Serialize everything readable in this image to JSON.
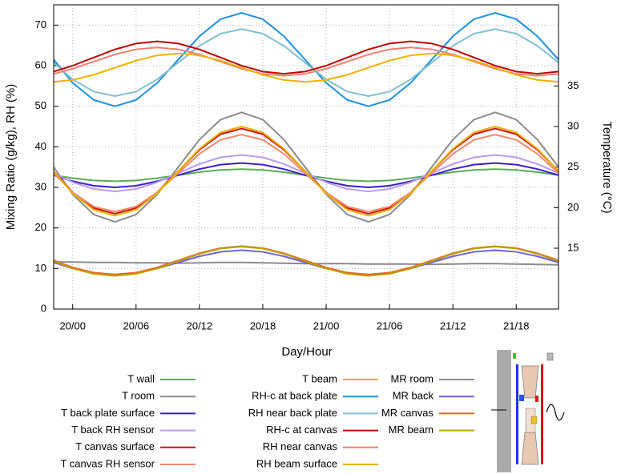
{
  "chart_data": {
    "type": "line",
    "x_label": "Day/Hour",
    "y_label": "Mixing Ratio (g/kg), RH (%)",
    "y2_label": "Temperature (°C)",
    "grid": true,
    "xlim": [
      -1.8,
      46
    ],
    "ylim": [
      0,
      75
    ],
    "y2lim": [
      7.5,
      45
    ],
    "xticks": [
      {
        "value": 0,
        "label": "20/00"
      },
      {
        "value": 6,
        "label": "20/06"
      },
      {
        "value": 12,
        "label": "20/12"
      },
      {
        "value": 18,
        "label": "20/18"
      },
      {
        "value": 24,
        "label": "21/00"
      },
      {
        "value": 30,
        "label": "21/06"
      },
      {
        "value": 36,
        "label": "21/12"
      },
      {
        "value": 42,
        "label": "21/18"
      }
    ],
    "yticks": [
      0,
      10,
      20,
      30,
      40,
      50,
      60,
      70
    ],
    "y2ticks": [
      15,
      20,
      25,
      30,
      35
    ],
    "x": [
      -1.8,
      0,
      2,
      4,
      6,
      8,
      10,
      12,
      14,
      16,
      18,
      20,
      22,
      24,
      26,
      28,
      30,
      32,
      34,
      36,
      38,
      40,
      42,
      44,
      46
    ],
    "series": [
      {
        "name": "T wall",
        "color": "#5aac5a",
        "axis": "y2",
        "values": [
          24,
          23.63,
          23.35,
          23.25,
          23.35,
          23.63,
          24,
          24.38,
          24.65,
          24.75,
          24.65,
          24.38,
          24,
          23.63,
          23.35,
          23.25,
          23.35,
          23.63,
          24,
          24.38,
          24.65,
          24.75,
          24.65,
          24.38,
          24
        ]
      },
      {
        "name": "T room",
        "color": "#8c8c8c",
        "axis": "y2",
        "values": [
          25,
          21.63,
          19.15,
          18.25,
          19.15,
          21.63,
          25,
          28.38,
          30.85,
          31.75,
          30.85,
          28.38,
          25,
          21.63,
          19.15,
          18.25,
          19.15,
          21.63,
          25,
          28.38,
          30.85,
          31.75,
          30.85,
          28.38,
          25
        ]
      },
      {
        "name": "T back plate surface",
        "color": "#3a1fd0",
        "axis": "y2",
        "values": [
          24,
          23.25,
          22.7,
          22.5,
          22.7,
          23.25,
          24,
          24.75,
          25.3,
          25.5,
          25.3,
          24.75,
          24,
          23.25,
          22.7,
          22.5,
          22.7,
          23.25,
          24,
          24.75,
          25.3,
          25.5,
          25.3,
          24.75,
          24
        ]
      },
      {
        "name": "T back RH sensor",
        "color": "#b89cf0",
        "axis": "y2",
        "values": [
          24.25,
          23.13,
          22.3,
          22,
          22.3,
          23.13,
          24.25,
          25.38,
          26.2,
          26.5,
          26.2,
          25.38,
          24.25,
          23.13,
          22.3,
          22,
          22.3,
          23.13,
          24.25,
          25.38,
          26.2,
          26.5,
          26.2,
          25.38,
          24.25
        ]
      },
      {
        "name": "T canvas surface",
        "color": "#d01010",
        "axis": "y2",
        "values": [
          24.5,
          21.88,
          19.95,
          19.25,
          19.95,
          21.88,
          24.5,
          27.13,
          29.05,
          29.75,
          29.05,
          27.13,
          24.5,
          21.88,
          19.95,
          19.25,
          19.95,
          21.88,
          24.5,
          27.13,
          29.05,
          29.75,
          29.05,
          27.13,
          24.5
        ]
      },
      {
        "name": "T canvas RH sensor",
        "color": "#f08a70",
        "axis": "y2",
        "values": [
          24.25,
          21.88,
          20.14,
          19.5,
          20.14,
          21.88,
          24.25,
          26.63,
          28.36,
          29,
          28.36,
          26.63,
          24.25,
          21.88,
          20.14,
          19.5,
          20.14,
          21.88,
          24.25,
          26.63,
          28.36,
          29,
          28.36,
          26.63,
          24.25
        ]
      },
      {
        "name": "T beam",
        "color": "#e8b000",
        "axis": "y2",
        "values": [
          24.5,
          21.75,
          19.74,
          19,
          19.74,
          21.75,
          24.5,
          27.25,
          29.26,
          30,
          29.26,
          27.25,
          24.5,
          21.75,
          19.74,
          19,
          19.74,
          21.75,
          24.5,
          27.25,
          29.26,
          30,
          29.26,
          27.25,
          24.5
        ]
      },
      {
        "name": "RH-c at back plate",
        "color": "#2090e0",
        "values": [
          61.5,
          55.75,
          51.54,
          50,
          51.54,
          55.75,
          61.5,
          67.25,
          71.46,
          73,
          71.46,
          67.25,
          61.5,
          55.75,
          51.54,
          50,
          51.54,
          55.75,
          61.5,
          67.25,
          71.46,
          73,
          71.46,
          67.25,
          61.5
        ]
      },
      {
        "name": "RH near back plate",
        "color": "#80c0d0",
        "values": [
          60.75,
          56.63,
          53.6,
          52.5,
          53.6,
          56.63,
          60.75,
          64.88,
          67.9,
          69,
          67.9,
          64.88,
          60.75,
          56.63,
          53.6,
          52.5,
          53.6,
          56.63,
          60.75,
          64.88,
          67.9,
          69,
          67.9,
          64.88,
          60.75
        ]
      },
      {
        "name": "RH-c at canvas",
        "color": "#c00000",
        "values": [
          58.54,
          60,
          62,
          64,
          65.46,
          66,
          65.46,
          64,
          62,
          60,
          58.54,
          58,
          58.54,
          60,
          62,
          64,
          65.46,
          66,
          65.46,
          64,
          62,
          60,
          58.54,
          58,
          58.54
        ]
      },
      {
        "name": "RH near canvas",
        "color": "#f08070",
        "values": [
          57.97,
          59.25,
          61,
          62.75,
          64.03,
          64.5,
          64.03,
          62.75,
          61,
          59.25,
          57.97,
          57.5,
          57.97,
          59.25,
          61,
          62.75,
          64.03,
          64.5,
          64.03,
          62.75,
          61,
          59.25,
          57.97,
          57.5,
          57.97
        ]
      },
      {
        "name": "RH beam surface",
        "color": "#f0b000",
        "values": [
          56,
          56.47,
          57.75,
          59.5,
          61.25,
          62.53,
          63,
          62.53,
          61.25,
          59.5,
          57.75,
          56.47,
          56,
          56.47,
          57.75,
          59.5,
          61.25,
          62.53,
          63,
          62.53,
          61.25,
          59.5,
          57.75,
          56.47,
          56
        ]
      },
      {
        "name": "MR room",
        "color": "#8c8c8c",
        "values": [
          11.6,
          11.6,
          11.5,
          11.5,
          11.4,
          11.4,
          11.3,
          11.4,
          11.5,
          11.5,
          11.4,
          11.3,
          11.2,
          11.2,
          11.2,
          11.1,
          11.1,
          11.1,
          11.0,
          11.1,
          11.2,
          11.2,
          11.1,
          11.0,
          10.9
        ]
      },
      {
        "name": "MR back",
        "color": "#7060e0",
        "values": [
          11.5,
          10,
          8.9,
          8.5,
          8.9,
          10,
          11.5,
          13,
          14.1,
          14.5,
          14.1,
          13,
          11.5,
          10,
          8.9,
          8.5,
          8.9,
          10,
          11.5,
          13,
          14.1,
          14.5,
          14.1,
          13,
          11.5
        ]
      },
      {
        "name": "MR canvas",
        "color": "#f06020",
        "values": [
          12,
          10.25,
          8.97,
          8.5,
          8.97,
          10.25,
          12,
          13.75,
          15.03,
          15.5,
          15.03,
          13.75,
          12,
          10.25,
          8.97,
          8.5,
          8.97,
          10.25,
          12,
          13.75,
          15.03,
          15.5,
          15.03,
          13.75,
          12
        ]
      },
      {
        "name": "MR beam",
        "color": "#b8a000",
        "values": [
          11.8,
          10,
          8.68,
          8.2,
          8.68,
          10,
          11.8,
          13.6,
          14.92,
          15.4,
          14.92,
          13.6,
          11.8,
          10,
          8.68,
          8.2,
          8.68,
          10,
          11.8,
          13.6,
          14.92,
          15.4,
          14.92,
          13.6,
          11.8
        ]
      }
    ]
  }
}
